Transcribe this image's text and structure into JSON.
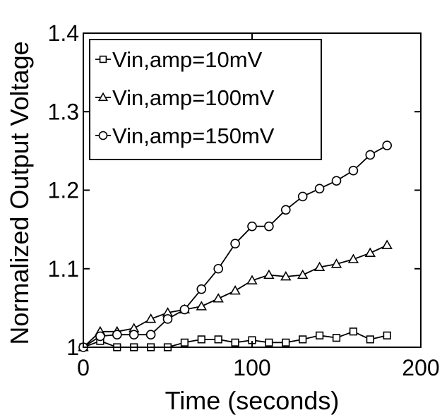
{
  "chart_data": {
    "type": "line",
    "title": "",
    "xlabel": "Time (seconds)",
    "ylabel": "Normalized Output Voltage",
    "xlim": [
      0,
      200
    ],
    "ylim": [
      1.0,
      1.4
    ],
    "xticks": [
      0,
      100,
      200
    ],
    "xtick_labels": [
      "0",
      "100",
      "200"
    ],
    "yticks": [
      1.0,
      1.1,
      1.2,
      1.3,
      1.4
    ],
    "ytick_labels": [
      "1",
      "1.1",
      "1.2",
      "1.3",
      "1.4"
    ],
    "grid": false,
    "legend_position": "top-left",
    "series": [
      {
        "name": "Vin,amp=10mV",
        "marker": "square",
        "x": [
          0,
          10,
          20,
          30,
          40,
          50,
          60,
          70,
          80,
          90,
          100,
          110,
          120,
          130,
          140,
          150,
          160,
          170,
          180
        ],
        "y": [
          1.0,
          1.008,
          1.0,
          1.0,
          1.0,
          1.0,
          1.006,
          1.01,
          1.01,
          1.006,
          1.009,
          1.006,
          1.006,
          1.01,
          1.015,
          1.012,
          1.02,
          1.01,
          1.015
        ]
      },
      {
        "name": "Vin,amp=100mV",
        "marker": "triangle",
        "x": [
          0,
          10,
          20,
          30,
          40,
          50,
          60,
          70,
          80,
          90,
          100,
          110,
          120,
          130,
          140,
          150,
          160,
          170,
          180
        ],
        "y": [
          1.0,
          1.02,
          1.02,
          1.024,
          1.036,
          1.044,
          1.048,
          1.052,
          1.062,
          1.072,
          1.085,
          1.092,
          1.09,
          1.092,
          1.102,
          1.106,
          1.112,
          1.12,
          1.13
        ]
      },
      {
        "name": "Vin,amp=150mV",
        "marker": "circle",
        "x": [
          0,
          10,
          20,
          30,
          40,
          50,
          60,
          70,
          80,
          90,
          100,
          110,
          120,
          130,
          140,
          150,
          160,
          170,
          180
        ],
        "y": [
          1.0,
          1.014,
          1.016,
          1.016,
          1.016,
          1.036,
          1.048,
          1.074,
          1.1,
          1.132,
          1.154,
          1.154,
          1.175,
          1.192,
          1.202,
          1.212,
          1.225,
          1.245,
          1.257
        ]
      }
    ]
  }
}
